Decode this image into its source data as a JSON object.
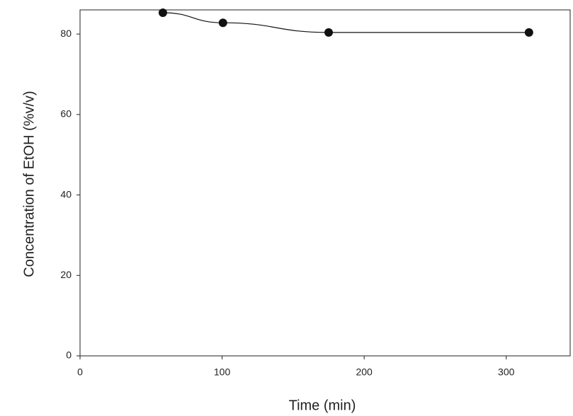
{
  "chart_data": {
    "type": "line",
    "x_label": "Time (min)",
    "y_label": "Concentration of EtOH (%v/v)",
    "series": [
      {
        "color": "#111111",
        "x": [
          58.3,
          100.6,
          175,
          316
        ],
        "values": [
          85.3,
          82.8,
          80.4,
          80.4
        ]
      }
    ],
    "xlim": [
      0,
      345
    ],
    "xticks": [
      0,
      100,
      200,
      300
    ],
    "ylim": [
      0,
      86
    ],
    "yticks": [
      0,
      20,
      40,
      60,
      80
    ],
    "grid": false
  }
}
